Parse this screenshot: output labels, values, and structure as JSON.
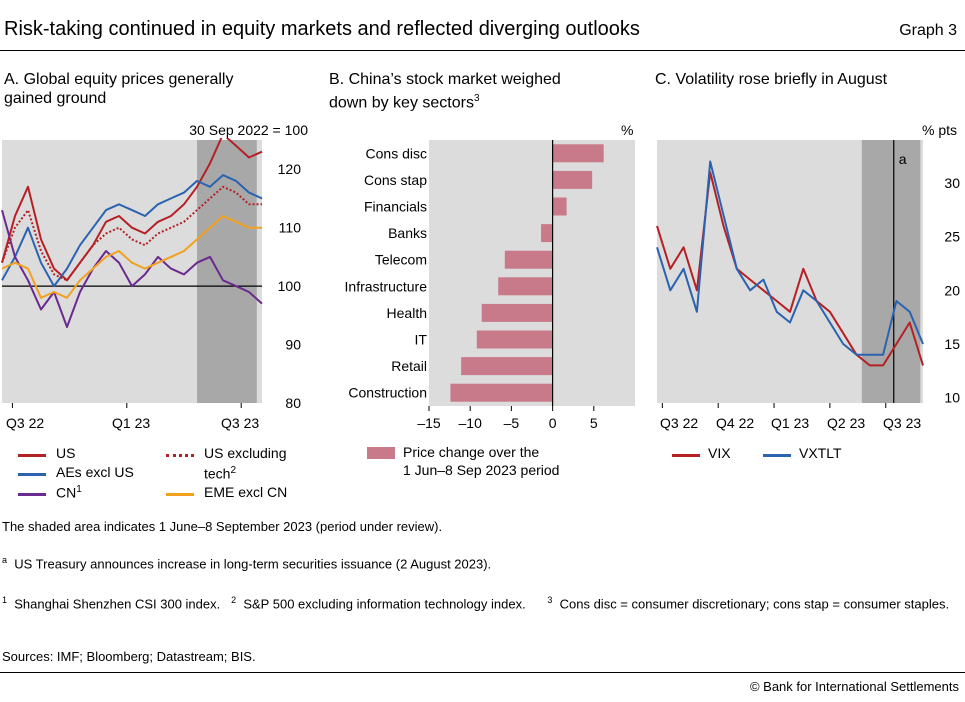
{
  "header": {
    "title": "Risk-taking continued in equity markets and reflected diverging outlooks",
    "graph_no": "Graph 3"
  },
  "panel_a": {
    "title_line1": "A. Global equity prices generally",
    "title_line2": "gained ground",
    "unit": "30 Sep 2022 = 100",
    "yticks": [
      "120",
      "110",
      "100",
      "90",
      "80"
    ],
    "xticks": [
      "Q3 22",
      "Q1 23",
      "Q3 23"
    ],
    "legend": {
      "us": "US",
      "aes": "AEs excl US",
      "cn": "CN",
      "cn_sup": "1",
      "us_ex_tech_1": "US excluding",
      "us_ex_tech_2": "tech",
      "us_ex_tech_sup": "2",
      "eme": "EME excl CN"
    }
  },
  "panel_b": {
    "title_line1": "B. China’s stock market weighed",
    "title_line2": "down by key sectors",
    "title_sup": "3",
    "unit": "%",
    "xticks": [
      "–15",
      "–10",
      "–5",
      "0",
      "5"
    ],
    "legend_line1": "Price change over the",
    "legend_line2": "1 Jun–8 Sep 2023 period"
  },
  "panel_c": {
    "title": "C. Volatility rose briefly in August",
    "unit": "% pts",
    "yticks": [
      "30",
      "25",
      "20",
      "15",
      "10"
    ],
    "xticks": [
      "Q3 22",
      "Q4 22",
      "Q1 23",
      "Q2 23",
      "Q3 23"
    ],
    "annotation": "a",
    "legend": {
      "vix": "VIX",
      "vxtlt": "VXTLT"
    }
  },
  "notes": {
    "shaded": "The shaded area indicates 1 June–8 September 2023 (period under review).",
    "a_sup": "a",
    "a_text": "US Treasury announces increase in long-term securities issuance (2 August 2023).",
    "n1_sup": "1",
    "n1_text": "Shanghai Shenzhen CSI 300 index.",
    "n2_sup": "2",
    "n2_text": "S&P 500 excluding information technology index.",
    "n3_sup": "3",
    "n3_text": "Cons disc = consumer discretionary; cons stap = consumer staples.",
    "sources": "Sources: IMF; Bloomberg; Datastream; BIS.",
    "copyright": "© Bank for International Settlements"
  },
  "colors": {
    "us": "#b52025",
    "aes": "#2b63b0",
    "cn": "#6a2a8e",
    "us_ex_tech": "#b52025",
    "eme": "#f2a11f",
    "bar": "#c87a8a",
    "vix": "#b52025",
    "vxtlt": "#2b63b0",
    "plot_bg": "#dcdcdc",
    "shade": "#a8a8a8"
  },
  "chart_data": [
    {
      "type": "line",
      "title": "A. Global equity prices generally gained ground",
      "ylabel": "30 Sep 2022 = 100",
      "ylim": [
        80,
        125
      ],
      "x_period": [
        "Q3 22",
        "Q3 23"
      ],
      "shaded_period": [
        "1 Jun 2023",
        "8 Sep 2023"
      ],
      "x": [
        0,
        0.05,
        0.1,
        0.15,
        0.2,
        0.25,
        0.3,
        0.35,
        0.4,
        0.45,
        0.5,
        0.55,
        0.6,
        0.65,
        0.7,
        0.75,
        0.8,
        0.85,
        0.9,
        0.95,
        1.0
      ],
      "series": [
        {
          "name": "US",
          "values": [
            104,
            112,
            117,
            108,
            103,
            101,
            104,
            107,
            111,
            112,
            110,
            109,
            111,
            112,
            114,
            117,
            121,
            126,
            124,
            122,
            123
          ]
        },
        {
          "name": "AEs excl US",
          "values": [
            101,
            105,
            110,
            104,
            100,
            103,
            107,
            110,
            113,
            114,
            113,
            112,
            114,
            115,
            116,
            118,
            117,
            119,
            118,
            116,
            115
          ]
        },
        {
          "name": "CN",
          "values": [
            113,
            105,
            101,
            96,
            99,
            93,
            99,
            103,
            106,
            104,
            100,
            102,
            105,
            103,
            102,
            104,
            105,
            101,
            100,
            99,
            97
          ]
        },
        {
          "name": "US excluding tech",
          "values": [
            104,
            110,
            113,
            106,
            102,
            101,
            104,
            107,
            109,
            110,
            108,
            107,
            109,
            110,
            111,
            113,
            115,
            117,
            116,
            114,
            114
          ]
        },
        {
          "name": "EME excl CN",
          "values": [
            103,
            104,
            103,
            98,
            99,
            98,
            101,
            103,
            105,
            106,
            104,
            103,
            104,
            105,
            106,
            108,
            110,
            112,
            111,
            110,
            110
          ]
        }
      ]
    },
    {
      "type": "bar",
      "title": "B. China’s stock market weighed down by key sectors",
      "unit": "%",
      "orientation": "horizontal",
      "xlim": [
        -15,
        10
      ],
      "categories": [
        "Cons disc",
        "Cons stap",
        "Financials",
        "Banks",
        "Telecom",
        "Infrastructure",
        "Health",
        "IT",
        "Retail",
        "Construction"
      ],
      "series": [
        {
          "name": "Price change over the 1 Jun–8 Sep 2023 period",
          "values": [
            6.2,
            4.8,
            1.7,
            -1.4,
            -5.8,
            -6.6,
            -8.6,
            -9.2,
            -11.1,
            -12.4
          ]
        }
      ]
    },
    {
      "type": "line",
      "title": "C. Volatility rose briefly in August",
      "ylabel": "% pts",
      "ylim": [
        9.5,
        34
      ],
      "x_period": [
        "Q3 22",
        "Q3 23"
      ],
      "shaded_period": [
        "1 Jun 2023",
        "8 Sep 2023"
      ],
      "event_line": "2 Aug 2023",
      "x": [
        0,
        0.05,
        0.1,
        0.15,
        0.2,
        0.25,
        0.3,
        0.35,
        0.4,
        0.45,
        0.5,
        0.55,
        0.6,
        0.65,
        0.7,
        0.75,
        0.8,
        0.85,
        0.9,
        0.95,
        1.0
      ],
      "series": [
        {
          "name": "VIX",
          "values": [
            26,
            22,
            24,
            20,
            31,
            26,
            22,
            21,
            20,
            19,
            18,
            22,
            19,
            18,
            16,
            14,
            13,
            13,
            15,
            17,
            13
          ]
        },
        {
          "name": "VXTLT",
          "values": [
            24,
            20,
            22,
            18,
            32,
            27,
            22,
            20,
            21,
            18,
            17,
            20,
            19,
            17,
            15,
            14,
            14,
            14,
            19,
            18,
            15
          ]
        }
      ]
    }
  ]
}
